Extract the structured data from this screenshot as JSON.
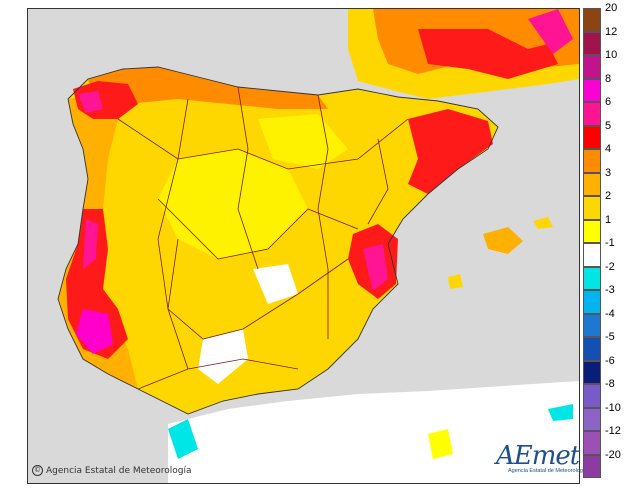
{
  "map": {
    "credit_text": "Agencia Estatal de Meteorología",
    "logo_text": "AEmet",
    "logo_subtext": "Agencia Estatal de Meteorología",
    "colors": {
      "sea": "#d9d9d9",
      "land_base": "#ffd700",
      "land_light": "#fff200",
      "warm_3": "#ffb000",
      "warm_4": "#ff8c00",
      "warm_5": "#ff1a1a",
      "warm_6": "#ff1493",
      "warm_8": "#ff00cc",
      "neutral": "#ffffff",
      "cold_1": "#00e5e5",
      "border": "#7a1a1a"
    }
  },
  "legend": {
    "steps": [
      {
        "label": "20",
        "color": "#8b4513"
      },
      {
        "label": "12",
        "color": "#a0144e"
      },
      {
        "label": "10",
        "color": "#c0148c"
      },
      {
        "label": "8",
        "color": "#ff00d4"
      },
      {
        "label": "6",
        "color": "#ff1493"
      },
      {
        "label": "5",
        "color": "#ff0000"
      },
      {
        "label": "4",
        "color": "#ff8c00"
      },
      {
        "label": "3",
        "color": "#ffb000"
      },
      {
        "label": "2",
        "color": "#ffd700"
      },
      {
        "label": "1",
        "color": "#ffff00"
      },
      {
        "label": "-1",
        "color": "#ffffff"
      },
      {
        "label": "-2",
        "color": "#00e5e5"
      },
      {
        "label": "-3",
        "color": "#00b4f0"
      },
      {
        "label": "-4",
        "color": "#1e78d2"
      },
      {
        "label": "-5",
        "color": "#1450b4"
      },
      {
        "label": "-6",
        "color": "#0a1e78"
      },
      {
        "label": "-8",
        "color": "#7a5ac8"
      },
      {
        "label": "-10",
        "color": "#8c64c8"
      },
      {
        "label": "-12",
        "color": "#9a50b4"
      },
      {
        "label": "-20",
        "color": "#8c3ca0"
      }
    ]
  }
}
